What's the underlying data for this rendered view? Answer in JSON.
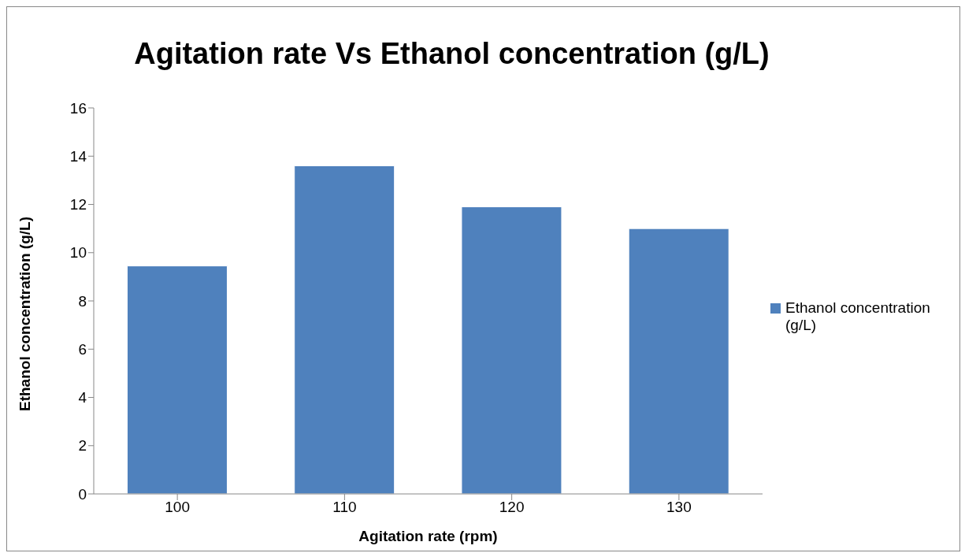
{
  "chart_data": {
    "type": "bar",
    "title": "Agitation rate Vs Ethanol concentration (g/L)",
    "xlabel": "Agitation rate (rpm)",
    "ylabel": "Ethanol concentration (g/L)",
    "categories": [
      "100",
      "110",
      "120",
      "130"
    ],
    "series": [
      {
        "name": "Ethanol concentration (g/L)",
        "color": "#4f81bd",
        "values": [
          9.45,
          13.6,
          11.9,
          11.0
        ]
      }
    ],
    "ylim": [
      0,
      16
    ],
    "yticks": [
      0,
      2,
      4,
      6,
      8,
      10,
      12,
      14,
      16
    ],
    "grid": false,
    "legend": "right"
  }
}
